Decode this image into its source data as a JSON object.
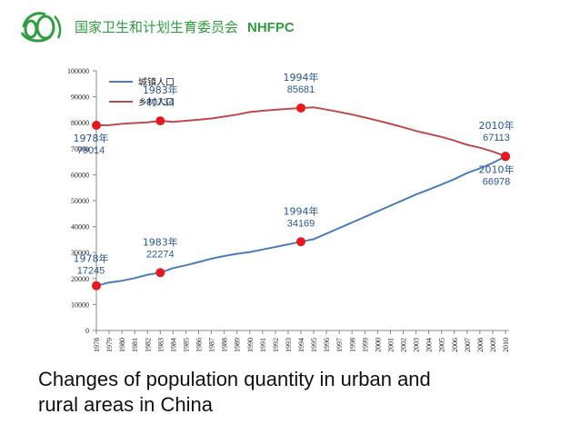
{
  "header": {
    "title_cn": "国家卫生和计划生育委员会",
    "title_en": "NHFPC",
    "brand_color": "#2f9e3f"
  },
  "caption": {
    "line1": "Changes of population quantity in urban and",
    "line2": "rural areas in China"
  },
  "chart_data": {
    "type": "line",
    "title": "",
    "xlabel": "",
    "ylabel": "",
    "ylim": [
      0,
      100000
    ],
    "yticks": [
      "0",
      "10000",
      "20000",
      "30000",
      "40000",
      "50000",
      "60000",
      "70000",
      "80000",
      "90000",
      "100000"
    ],
    "categories": [
      "1978",
      "1979",
      "1980",
      "1981",
      "1982",
      "1983",
      "1984",
      "1985",
      "1986",
      "1987",
      "1988",
      "1989",
      "1990",
      "1991",
      "1992",
      "1993",
      "1994",
      "1995",
      "1996",
      "1997",
      "1998",
      "1999",
      "2000",
      "2001",
      "2002",
      "2003",
      "2004",
      "2005",
      "2006",
      "2007",
      "2008",
      "2009",
      "2010"
    ],
    "legend_position": "top-left",
    "grid": false,
    "series": [
      {
        "name": "城镇人口",
        "color": "#4a7ebb",
        "values": [
          17245,
          18495,
          19140,
          20171,
          21480,
          22274,
          24017,
          25094,
          26366,
          27674,
          28661,
          29540,
          30195,
          31203,
          32175,
          33173,
          34169,
          35174,
          37304,
          39449,
          41608,
          43748,
          45906,
          48064,
          50212,
          52376,
          54283,
          56212,
          58288,
          60633,
          62403,
          64512,
          66978
        ]
      },
      {
        "name": "乡村人口",
        "color": "#be4b48",
        "values": [
          79014,
          79047,
          79565,
          79901,
          80174,
          80734,
          80340,
          80757,
          81141,
          81626,
          82365,
          83164,
          84138,
          84620,
          84996,
          85344,
          85681,
          85947,
          85085,
          84177,
          83153,
          82038,
          80837,
          79563,
          78241,
          76851,
          75705,
          74544,
          73160,
          71496,
          70399,
          68938,
          67113
        ]
      }
    ],
    "marker_color": "#e8191c",
    "annotations": [
      {
        "series": 1,
        "x": "1978",
        "year_label": "1978年",
        "value_label": "79014"
      },
      {
        "series": 1,
        "x": "1983",
        "year_label": "1983年",
        "value_label": "80734"
      },
      {
        "series": 1,
        "x": "1994",
        "year_label": "1994年",
        "value_label": "85681"
      },
      {
        "series": 1,
        "x": "2010",
        "year_label": "2010年",
        "value_label": "67113"
      },
      {
        "series": 0,
        "x": "1978",
        "year_label": "1978年",
        "value_label": "17245"
      },
      {
        "series": 0,
        "x": "1983",
        "year_label": "1983年",
        "value_label": "22274"
      },
      {
        "series": 0,
        "x": "1994",
        "year_label": "1994年",
        "value_label": "34169"
      },
      {
        "series": 0,
        "x": "2010",
        "year_label": "2010年",
        "value_label": "66978"
      }
    ]
  }
}
